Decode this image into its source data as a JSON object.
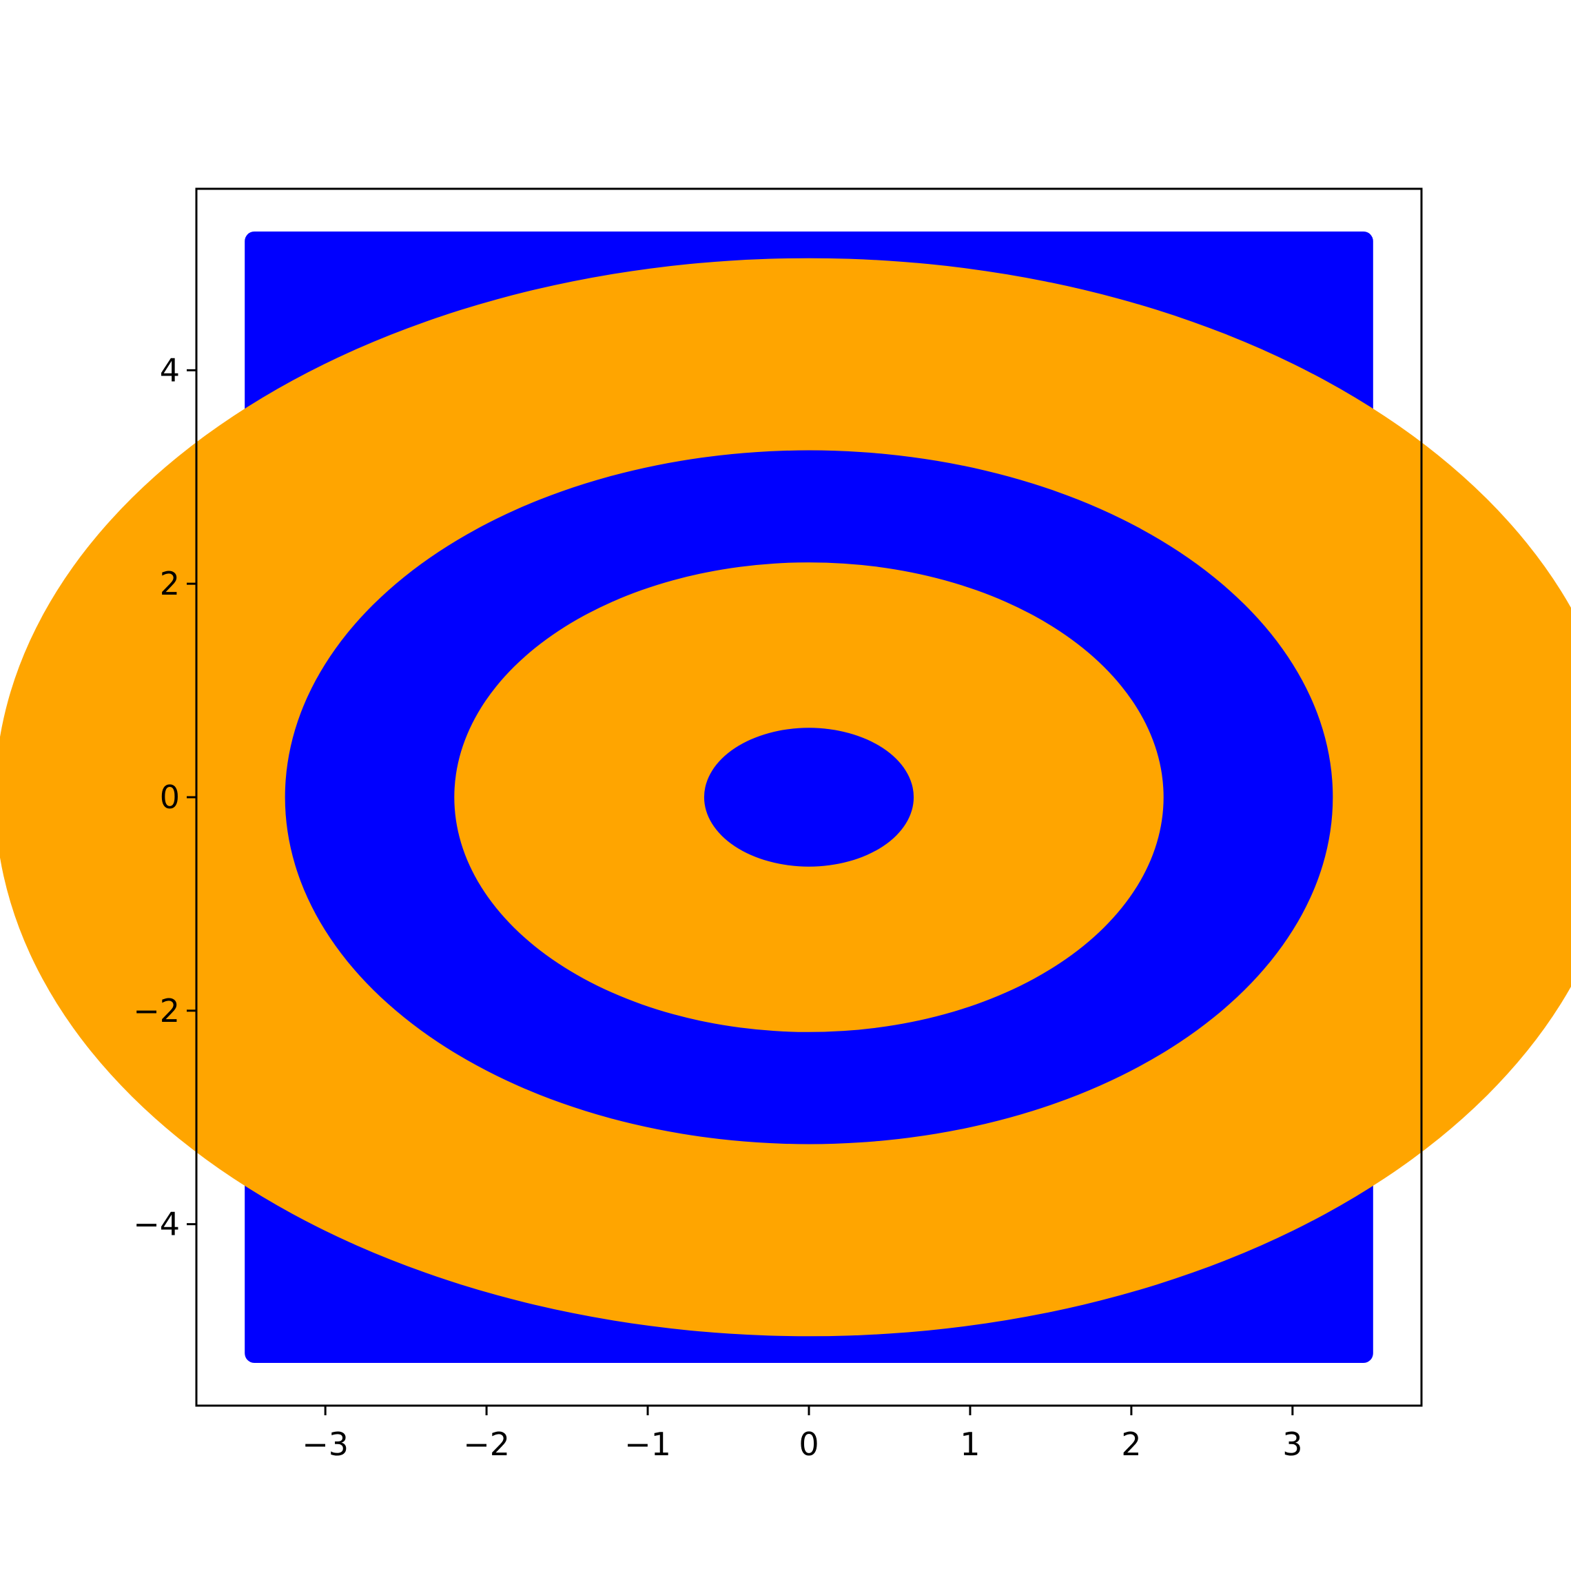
{
  "chart_data": {
    "type": "scatter",
    "title": "",
    "xlabel": "",
    "ylabel": "",
    "xlim": [
      -3.8,
      3.8
    ],
    "ylim": [
      -5.7,
      5.7
    ],
    "grid": false,
    "x_ticks": [
      -3,
      -2,
      -1,
      0,
      1,
      2,
      3
    ],
    "y_ticks": [
      -4,
      -2,
      0,
      2,
      4
    ],
    "x_tick_labels": [
      "−3",
      "−2",
      "−1",
      "0",
      "1",
      "2",
      "3"
    ],
    "y_tick_labels": [
      "−4",
      "−2",
      "0",
      "2",
      "4"
    ],
    "points_extent": {
      "x": [
        -3.5,
        3.5
      ],
      "y": [
        -5.3,
        5.3
      ]
    },
    "series": [
      {
        "class": 0,
        "color": "#0000ff",
        "region": "background",
        "r_range": [
          0,
          0.65
        ]
      },
      {
        "class": 1,
        "color": "#ffa500",
        "region": "ring",
        "r_range": [
          0.65,
          2.2
        ]
      },
      {
        "class": 0,
        "color": "#0000ff",
        "region": "ring",
        "r_range": [
          2.2,
          3.25
        ]
      },
      {
        "class": 1,
        "color": "#ffa500",
        "region": "ring",
        "r_range": [
          3.25,
          5.05
        ]
      }
    ],
    "colors": {
      "blue": "#0000ff",
      "orange": "#ffa500"
    }
  }
}
